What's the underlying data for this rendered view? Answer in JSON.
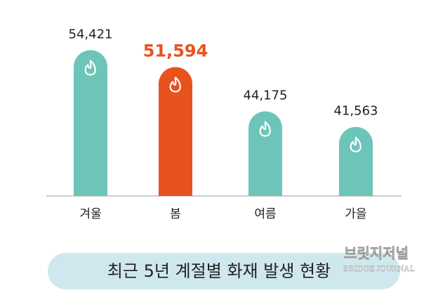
{
  "chart_data": {
    "type": "bar",
    "title": "최근 5년 계절별 화재 발생 현황",
    "categories": [
      "겨울",
      "봄",
      "여름",
      "가을"
    ],
    "values": [
      54421,
      51594,
      44175,
      41563
    ],
    "value_labels": [
      "54,421",
      "51,594",
      "44,175",
      "41,563"
    ],
    "colors": [
      "#6cc5b8",
      "#e8521e",
      "#6cc5b8",
      "#6cc5b8"
    ],
    "ylim": [
      30000,
      56000
    ],
    "annotations": [
      "브릿지저널",
      "BRIDGE JOURNAL"
    ]
  }
}
